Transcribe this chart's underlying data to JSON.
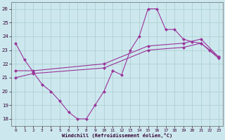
{
  "xlabel": "Windchill (Refroidissement éolien,°C)",
  "background_color": "#cce8ee",
  "grid_color": "#aacccc",
  "line_color": "#993399",
  "ylim": [
    17.5,
    26.5
  ],
  "xlim": [
    -0.5,
    23.5
  ],
  "yticks": [
    18,
    19,
    20,
    21,
    22,
    23,
    24,
    25,
    26
  ],
  "xticks": [
    0,
    1,
    2,
    3,
    4,
    5,
    6,
    7,
    8,
    9,
    10,
    11,
    12,
    13,
    14,
    15,
    16,
    17,
    18,
    19,
    20,
    21,
    22,
    23
  ],
  "curve1_x": [
    0,
    1,
    2,
    3,
    4,
    5,
    6,
    7,
    8,
    9,
    10,
    11,
    12,
    13,
    14,
    15,
    16,
    17,
    18,
    19,
    20,
    21,
    22,
    23
  ],
  "curve1_y": [
    23.5,
    22.3,
    21.4,
    20.5,
    20.0,
    19.3,
    18.5,
    18.0,
    18.0,
    19.0,
    20.0,
    21.5,
    21.2,
    23.0,
    24.0,
    26.0,
    26.0,
    24.5,
    24.5,
    23.8,
    23.6,
    23.5,
    23.0,
    22.5
  ],
  "curve2_x": [
    0,
    2,
    10,
    15,
    19,
    21,
    23
  ],
  "curve2_y": [
    21.5,
    21.5,
    22.0,
    23.3,
    23.5,
    23.8,
    22.5
  ],
  "curve3_x": [
    0,
    2,
    10,
    15,
    19,
    21,
    23
  ],
  "curve3_y": [
    21.0,
    21.3,
    21.7,
    23.0,
    23.2,
    23.5,
    22.4
  ]
}
